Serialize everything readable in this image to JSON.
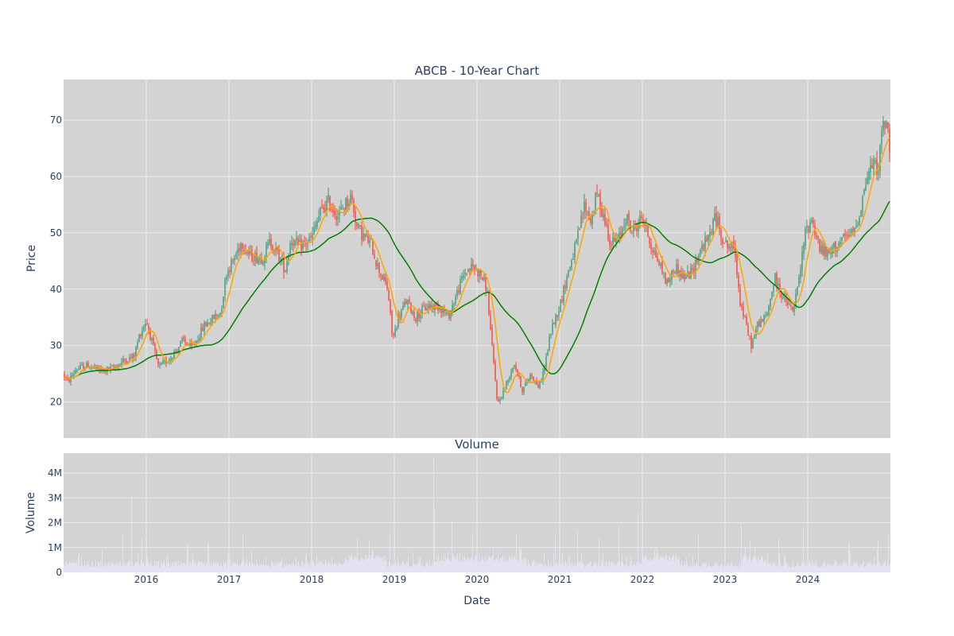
{
  "chart_data": {
    "type": "candlestick",
    "title": "ABCB - 10-Year Chart",
    "volume_title": "Volume",
    "xlabel": "Date",
    "price_ylabel": "Price",
    "volume_ylabel": "Volume",
    "x_range": [
      2015.0,
      2025.0
    ],
    "x_ticks": [
      2016,
      2017,
      2018,
      2019,
      2020,
      2021,
      2022,
      2023,
      2024
    ],
    "x_tick_labels": [
      "2016",
      "2017",
      "2018",
      "2019",
      "2020",
      "2021",
      "2022",
      "2023",
      "2024"
    ],
    "price_ylim": [
      13.6,
      77.2
    ],
    "price_ticks": [
      20,
      30,
      40,
      50,
      60,
      70
    ],
    "volume_ylim": [
      0,
      4800000
    ],
    "volume_ticks": [
      0,
      1000000,
      2000000,
      3000000,
      4000000
    ],
    "volume_tick_labels": [
      "0",
      "1M",
      "2M",
      "3M",
      "4M"
    ],
    "grid": true,
    "legend": "none",
    "colors": {
      "panel_bg": "#d3d3d3",
      "grid": "#ececec",
      "up": "#3d9970",
      "down": "#ff4136",
      "ma_short": "#ffa500",
      "ma_long": "#008000",
      "volume": "#e5e5f5",
      "text": "#2a3f5f"
    },
    "price_anchors": [
      [
        2015.0,
        25.0
      ],
      [
        2015.05,
        23.5
      ],
      [
        2015.15,
        25.8
      ],
      [
        2015.3,
        26.5
      ],
      [
        2015.45,
        25.5
      ],
      [
        2015.6,
        26.0
      ],
      [
        2015.75,
        27.5
      ],
      [
        2015.85,
        28.0
      ],
      [
        2015.92,
        32.0
      ],
      [
        2016.0,
        34.5
      ],
      [
        2016.08,
        30.0
      ],
      [
        2016.15,
        26.0
      ],
      [
        2016.3,
        28.0
      ],
      [
        2016.45,
        31.0
      ],
      [
        2016.55,
        29.5
      ],
      [
        2016.7,
        33.5
      ],
      [
        2016.9,
        36.0
      ],
      [
        2016.97,
        43.0
      ],
      [
        2017.05,
        45.0
      ],
      [
        2017.15,
        48.5
      ],
      [
        2017.25,
        46.0
      ],
      [
        2017.4,
        45.5
      ],
      [
        2017.5,
        48.5
      ],
      [
        2017.6,
        46.0
      ],
      [
        2017.68,
        43.5
      ],
      [
        2017.75,
        49.0
      ],
      [
        2017.85,
        47.5
      ],
      [
        2018.0,
        49.0
      ],
      [
        2018.1,
        53.5
      ],
      [
        2018.2,
        55.5
      ],
      [
        2018.32,
        53.0
      ],
      [
        2018.4,
        55.0
      ],
      [
        2018.48,
        56.5
      ],
      [
        2018.55,
        51.0
      ],
      [
        2018.62,
        49.5
      ],
      [
        2018.72,
        48.0
      ],
      [
        2018.8,
        44.0
      ],
      [
        2018.92,
        40.0
      ],
      [
        2018.98,
        31.0
      ],
      [
        2019.05,
        35.0
      ],
      [
        2019.15,
        38.0
      ],
      [
        2019.25,
        35.0
      ],
      [
        2019.4,
        37.0
      ],
      [
        2019.55,
        37.0
      ],
      [
        2019.65,
        35.0
      ],
      [
        2019.75,
        39.0
      ],
      [
        2019.85,
        43.0
      ],
      [
        2019.95,
        44.0
      ],
      [
        2020.05,
        42.5
      ],
      [
        2020.12,
        40.0
      ],
      [
        2020.18,
        30.0
      ],
      [
        2020.25,
        19.5
      ],
      [
        2020.35,
        23.0
      ],
      [
        2020.45,
        27.0
      ],
      [
        2020.55,
        22.0
      ],
      [
        2020.65,
        25.0
      ],
      [
        2020.75,
        22.5
      ],
      [
        2020.82,
        26.5
      ],
      [
        2020.9,
        33.0
      ],
      [
        2021.0,
        37.0
      ],
      [
        2021.1,
        43.0
      ],
      [
        2021.2,
        48.0
      ],
      [
        2021.3,
        55.0
      ],
      [
        2021.38,
        52.0
      ],
      [
        2021.45,
        57.0
      ],
      [
        2021.55,
        52.0
      ],
      [
        2021.62,
        48.0
      ],
      [
        2021.72,
        49.0
      ],
      [
        2021.8,
        53.0
      ],
      [
        2021.88,
        50.0
      ],
      [
        2022.0,
        53.0
      ],
      [
        2022.1,
        48.0
      ],
      [
        2022.22,
        44.0
      ],
      [
        2022.3,
        41.0
      ],
      [
        2022.4,
        44.0
      ],
      [
        2022.5,
        42.0
      ],
      [
        2022.6,
        43.0
      ],
      [
        2022.7,
        47.0
      ],
      [
        2022.8,
        49.0
      ],
      [
        2022.88,
        53.0
      ],
      [
        2023.0,
        48.0
      ],
      [
        2023.12,
        47.0
      ],
      [
        2023.18,
        38.0
      ],
      [
        2023.28,
        32.0
      ],
      [
        2023.32,
        30.0
      ],
      [
        2023.4,
        34.0
      ],
      [
        2023.5,
        35.0
      ],
      [
        2023.6,
        42.0
      ],
      [
        2023.72,
        38.0
      ],
      [
        2023.82,
        36.0
      ],
      [
        2023.9,
        42.0
      ],
      [
        2023.97,
        50.0
      ],
      [
        2024.05,
        52.5
      ],
      [
        2024.15,
        47.0
      ],
      [
        2024.25,
        46.0
      ],
      [
        2024.35,
        48.0
      ],
      [
        2024.45,
        49.0
      ],
      [
        2024.55,
        50.0
      ],
      [
        2024.62,
        53.0
      ],
      [
        2024.7,
        59.0
      ],
      [
        2024.78,
        62.0
      ],
      [
        2024.85,
        61.5
      ],
      [
        2024.92,
        70.0
      ],
      [
        2024.97,
        68.0
      ],
      [
        2025.0,
        63.0
      ]
    ],
    "volume_spikes": [
      [
        2015.82,
        3100000
      ],
      [
        2015.72,
        1500000
      ],
      [
        2015.95,
        1400000
      ],
      [
        2016.5,
        1100000
      ],
      [
        2016.75,
        1150000
      ],
      [
        2017.17,
        1500000
      ],
      [
        2018.55,
        1400000
      ],
      [
        2018.7,
        1300000
      ],
      [
        2018.95,
        1550000
      ],
      [
        2019.48,
        4600000
      ],
      [
        2019.49,
        2600000
      ],
      [
        2019.7,
        2100000
      ],
      [
        2019.95,
        1550000
      ],
      [
        2020.2,
        1000000
      ],
      [
        2020.48,
        1500000
      ],
      [
        2020.95,
        1500000
      ],
      [
        2021.22,
        1700000
      ],
      [
        2021.48,
        1400000
      ],
      [
        2021.72,
        1900000
      ],
      [
        2021.95,
        2400000
      ],
      [
        2022.68,
        1500000
      ],
      [
        2023.2,
        2000000
      ],
      [
        2023.3,
        1300000
      ],
      [
        2023.65,
        1350000
      ],
      [
        2023.95,
        1800000
      ],
      [
        2024.5,
        1150000
      ],
      [
        2024.85,
        1300000
      ],
      [
        2024.98,
        1550000
      ]
    ]
  }
}
